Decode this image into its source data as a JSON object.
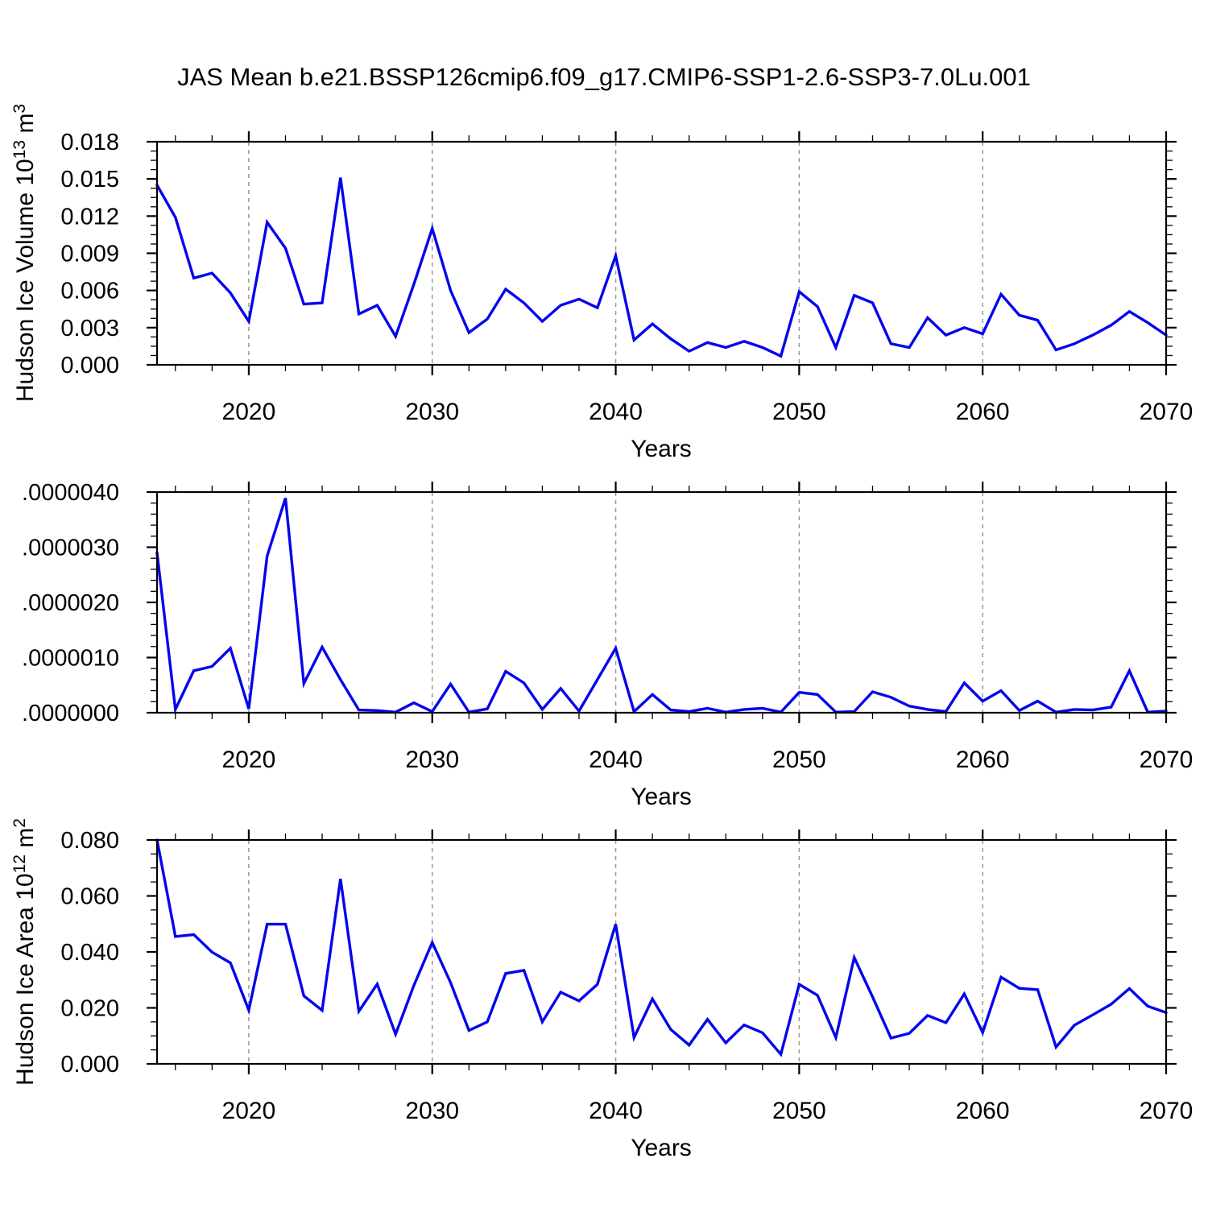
{
  "title": "JAS Mean b.e21.BSSP126cmip6.f09_g17.CMIP6-SSP1-2.6-SSP3-7.0Lu.001",
  "style": {
    "line_color": "#0404ee",
    "grid_color": "#999999",
    "axis_color": "#000000",
    "background": "#ffffff"
  },
  "chart_data": [
    {
      "type": "line",
      "name": "hudson-ice-volume",
      "ylabel": "Hudson Ice Volume 10^13 m^3",
      "ylabel_parts": {
        "prefix": "Hudson Ice Volume 10",
        "sup1": "13",
        "mid": " m",
        "sup2": "3"
      },
      "xlabel": "Years",
      "x_start": 2015,
      "x_end": 2070,
      "xticks": [
        2020,
        2030,
        2040,
        2050,
        2060,
        2070
      ],
      "xtick_labels": [
        "2020",
        "2030",
        "2040",
        "2050",
        "2060",
        "2070"
      ],
      "x_minor_step": 2,
      "grid_years": [
        2020,
        2030,
        2040,
        2050,
        2060
      ],
      "ylim": [
        0,
        0.018
      ],
      "yticks": [
        {
          "value": 0.018,
          "label": "0.018"
        },
        {
          "value": 0.015,
          "label": "0.015"
        },
        {
          "value": 0.012,
          "label": "0.012"
        },
        {
          "value": 0.009,
          "label": "0.009"
        },
        {
          "value": 0.006,
          "label": "0.006"
        },
        {
          "value": 0.003,
          "label": "0.003"
        },
        {
          "value": 0.0,
          "label": "0.000"
        }
      ],
      "y_minor_step": 0.00075,
      "values": [
        0.0145,
        0.0119,
        0.007,
        0.0074,
        0.0058,
        0.0035,
        0.0115,
        0.0094,
        0.0049,
        0.005,
        0.0151,
        0.0041,
        0.0048,
        0.0023,
        0.0065,
        0.011,
        0.006,
        0.0026,
        0.0037,
        0.0061,
        0.005,
        0.0035,
        0.0048,
        0.0053,
        0.0046,
        0.0088,
        0.002,
        0.0033,
        0.0021,
        0.0011,
        0.0018,
        0.0014,
        0.0019,
        0.0014,
        0.0007,
        0.0059,
        0.0047,
        0.0014,
        0.0056,
        0.005,
        0.0017,
        0.0014,
        0.0038,
        0.0024,
        0.003,
        0.0025,
        0.0057,
        0.004,
        0.0036,
        0.0012,
        0.0017,
        0.0024,
        0.0032,
        0.0043,
        0.0034,
        0.0024
      ]
    },
    {
      "type": "line",
      "name": "hudson-ice-middle-series",
      "xlabel": "Years",
      "x_start": 2015,
      "x_end": 2070,
      "xticks": [
        2020,
        2030,
        2040,
        2050,
        2060,
        2070
      ],
      "xtick_labels": [
        "2020",
        "2030",
        "2040",
        "2050",
        "2060",
        "2070"
      ],
      "x_minor_step": 2,
      "grid_years": [
        2020,
        2030,
        2040,
        2050,
        2060
      ],
      "ylim": [
        0,
        4e-06
      ],
      "yticks": [
        {
          "value": 4e-06,
          "label": ".0000040"
        },
        {
          "value": 3e-06,
          "label": ".0000030"
        },
        {
          "value": 2e-06,
          "label": ".0000020"
        },
        {
          "value": 1e-06,
          "label": ".0000010"
        },
        {
          "value": 0.0,
          "label": ".0000000"
        }
      ],
      "y_minor_step": 2e-07,
      "values": [
        2.9e-06,
        6e-08,
        7.6e-07,
        8.4e-07,
        1.17e-06,
        7e-08,
        2.84e-06,
        3.89e-06,
        5.3e-07,
        1.19e-06,
        6e-07,
        5e-08,
        4e-08,
        1e-08,
        1.8e-07,
        2e-08,
        5.2e-07,
        1e-08,
        7e-08,
        7.5e-07,
        5.4e-07,
        6e-08,
        4.4e-07,
        3e-08,
        6e-07,
        1.17e-06,
        2e-08,
        3.3e-07,
        5e-08,
        2e-08,
        8e-08,
        1e-08,
        6e-08,
        8e-08,
        1e-08,
        3.7e-07,
        3.3e-07,
        1e-08,
        2e-08,
        3.8e-07,
        2.8e-07,
        1.2e-07,
        6e-08,
        2e-08,
        5.4e-07,
        2.1e-07,
        4e-07,
        4e-08,
        2.1e-07,
        1e-08,
        6e-08,
        5e-08,
        1e-07,
        7.6e-07,
        1e-08,
        3e-08
      ]
    },
    {
      "type": "line",
      "name": "hudson-ice-area",
      "ylabel": "Hudson Ice Area 10^12 m^2",
      "ylabel_parts": {
        "prefix": "Hudson Ice Area 10",
        "sup1": "12",
        "mid": " m",
        "sup2": "2"
      },
      "xlabel": "Years",
      "x_start": 2015,
      "x_end": 2070,
      "xticks": [
        2020,
        2030,
        2040,
        2050,
        2060,
        2070
      ],
      "xtick_labels": [
        "2020",
        "2030",
        "2040",
        "2050",
        "2060",
        "2070"
      ],
      "x_minor_step": 2,
      "grid_years": [
        2020,
        2030,
        2040,
        2050,
        2060
      ],
      "ylim": [
        0,
        0.08
      ],
      "yticks": [
        {
          "value": 0.08,
          "label": "0.080"
        },
        {
          "value": 0.06,
          "label": "0.060"
        },
        {
          "value": 0.04,
          "label": "0.040"
        },
        {
          "value": 0.02,
          "label": "0.020"
        },
        {
          "value": 0.0,
          "label": "0.000"
        }
      ],
      "y_minor_step": 0.005,
      "values": [
        0.08,
        0.0455,
        0.0462,
        0.0399,
        0.0361,
        0.0192,
        0.0499,
        0.0499,
        0.0243,
        0.0191,
        0.0661,
        0.0188,
        0.0285,
        0.0106,
        0.028,
        0.0434,
        0.029,
        0.0119,
        0.015,
        0.0323,
        0.0334,
        0.015,
        0.0256,
        0.0225,
        0.0284,
        0.0499,
        0.0094,
        0.0232,
        0.0123,
        0.0067,
        0.0159,
        0.0075,
        0.0139,
        0.0111,
        0.0034,
        0.0284,
        0.0245,
        0.0094,
        0.038,
        0.0239,
        0.0092,
        0.0109,
        0.0173,
        0.0147,
        0.025,
        0.0112,
        0.031,
        0.027,
        0.0265,
        0.006,
        0.0138,
        0.0175,
        0.0213,
        0.0269,
        0.0206,
        0.0183
      ]
    }
  ]
}
